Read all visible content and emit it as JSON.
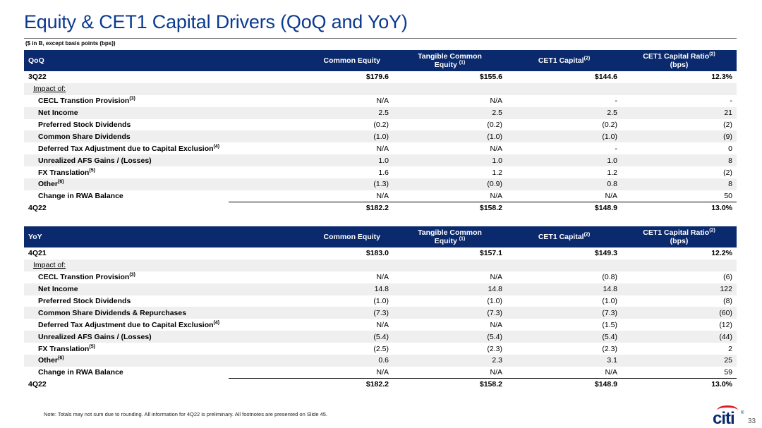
{
  "title": "Equity & CET1 Capital Drivers (QoQ and YoY)",
  "subtitle": "($ in B, except basis points (bps))",
  "columns": {
    "common_equity": "Common Equity",
    "tce_line1": "Tangible Common",
    "tce_line2": "Equity",
    "tce_sup": "(1)",
    "cet1_capital": "CET1 Capital",
    "cet1_capital_sup": "(2)",
    "cet1_ratio_line1": "CET1 Capital Ratio",
    "cet1_ratio_sup": "(2)",
    "cet1_ratio_line2": "(bps)"
  },
  "qoq": {
    "header": "QoQ",
    "rows": [
      {
        "label": "3Q22",
        "sup": "",
        "v": [
          "$179.6",
          "$155.6",
          "$144.6",
          "12.3%"
        ]
      },
      {
        "label": "Impact of:",
        "sup": "",
        "v": [
          "",
          "",
          "",
          ""
        ]
      },
      {
        "label": "CECL Transtion Provision",
        "sup": "(3)",
        "v": [
          "N/A",
          "N/A",
          "-",
          "-"
        ]
      },
      {
        "label": "Net Income",
        "sup": "",
        "v": [
          "2.5",
          "2.5",
          "2.5",
          "21"
        ]
      },
      {
        "label": "Preferred Stock Dividends",
        "sup": "",
        "v": [
          "(0.2)",
          "(0.2)",
          "(0.2)",
          "(2)"
        ]
      },
      {
        "label": "Common Share Dividends",
        "sup": "",
        "v": [
          "(1.0)",
          "(1.0)",
          "(1.0)",
          "(9)"
        ]
      },
      {
        "label": "Deferred Tax Adjustment due to Capital Exclusion",
        "sup": "(4)",
        "v": [
          "N/A",
          "N/A",
          "-",
          "0"
        ]
      },
      {
        "label": "Unrealized AFS Gains / (Losses)",
        "sup": "",
        "v": [
          "1.0",
          "1.0",
          "1.0",
          "8"
        ]
      },
      {
        "label": "FX Translation",
        "sup": "(5)",
        "v": [
          "1.6",
          "1.2",
          "1.2",
          "(2)"
        ]
      },
      {
        "label": "Other",
        "sup": "(6)",
        "v": [
          "(1.3)",
          "(0.9)",
          "0.8",
          "8"
        ]
      },
      {
        "label": "Change in RWA Balance",
        "sup": "",
        "v": [
          "N/A",
          "N/A",
          "N/A",
          "50"
        ]
      },
      {
        "label": "4Q22",
        "sup": "",
        "v": [
          "$182.2",
          "$158.2",
          "$148.9",
          "13.0%"
        ]
      }
    ]
  },
  "yoy": {
    "header": "YoY",
    "rows": [
      {
        "label": "4Q21",
        "sup": "",
        "v": [
          "$183.0",
          "$157.1",
          "$149.3",
          "12.2%"
        ]
      },
      {
        "label": "Impact of:",
        "sup": "",
        "v": [
          "",
          "",
          "",
          ""
        ]
      },
      {
        "label": "CECL Transtion Provision",
        "sup": "(3)",
        "v": [
          "N/A",
          "N/A",
          "(0.8)",
          "(6)"
        ]
      },
      {
        "label": "Net Income",
        "sup": "",
        "v": [
          "14.8",
          "14.8",
          "14.8",
          "122"
        ]
      },
      {
        "label": "Preferred Stock Dividends",
        "sup": "",
        "v": [
          "(1.0)",
          "(1.0)",
          "(1.0)",
          "(8)"
        ]
      },
      {
        "label": "Common Share Dividends & Repurchases",
        "sup": "",
        "v": [
          "(7.3)",
          "(7.3)",
          "(7.3)",
          "(60)"
        ]
      },
      {
        "label": "Deferred Tax Adjustment due to Capital Exclusion",
        "sup": "(4)",
        "v": [
          "N/A",
          "N/A",
          "(1.5)",
          "(12)"
        ]
      },
      {
        "label": "Unrealized AFS Gains / (Losses)",
        "sup": "",
        "v": [
          "(5.4)",
          "(5.4)",
          "(5.4)",
          "(44)"
        ]
      },
      {
        "label": "FX Translation",
        "sup": "(5)",
        "v": [
          "(2.5)",
          "(2.3)",
          "(2.3)",
          "2"
        ]
      },
      {
        "label": "Other",
        "sup": "(6)",
        "v": [
          "0.6",
          "2.3",
          "3.1",
          "25"
        ]
      },
      {
        "label": "Change in RWA Balance",
        "sup": "",
        "v": [
          "N/A",
          "N/A",
          "N/A",
          "59"
        ]
      },
      {
        "label": "4Q22",
        "sup": "",
        "v": [
          "$182.2",
          "$158.2",
          "$148.9",
          "13.0%"
        ]
      }
    ]
  },
  "footer": {
    "note": "Note: Totals may not sum due to rounding. All information for 4Q22 is preliminary.  All footnotes are presented on Slide 45.",
    "logo": "citi",
    "registered": "®",
    "page_number": "33"
  }
}
